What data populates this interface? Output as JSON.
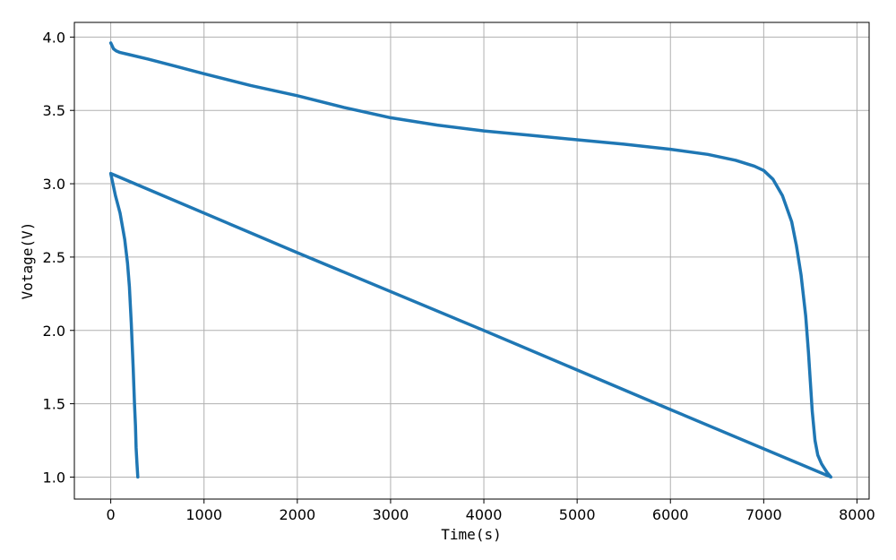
{
  "chart_data": {
    "type": "line",
    "title": "",
    "xlabel": "Time(s)",
    "ylabel": "Votage(V)",
    "xlim": [
      -390,
      8130
    ],
    "ylim": [
      0.85,
      4.1
    ],
    "grid": true,
    "legend": "none",
    "x_ticks": [
      0,
      1000,
      2000,
      3000,
      4000,
      5000,
      6000,
      7000,
      8000
    ],
    "y_ticks": [
      1.0,
      1.5,
      2.0,
      2.5,
      3.0,
      3.5,
      4.0
    ],
    "y_tick_labels": [
      "1.0",
      "1.5",
      "2.0",
      "2.5",
      "3.0",
      "3.5",
      "4.0"
    ],
    "series": [
      {
        "color": "#1f77b4",
        "x": [
          0,
          30,
          60,
          100,
          200,
          400,
          700,
          1000,
          1500,
          2000,
          2500,
          3000,
          3500,
          4000,
          4500,
          5000,
          5500,
          6000,
          6400,
          6700,
          6900,
          7000,
          7100,
          7200,
          7300,
          7350,
          7400,
          7450,
          7480,
          7500,
          7520,
          7550,
          7580,
          7600,
          7620,
          7650,
          7680,
          7720,
          6000,
          4000,
          2000,
          0,
          50,
          100,
          150,
          180,
          200,
          220,
          240,
          255,
          265,
          272,
          280,
          290
        ],
        "y": [
          3.96,
          3.92,
          3.905,
          3.895,
          3.88,
          3.85,
          3.8,
          3.75,
          3.67,
          3.6,
          3.52,
          3.45,
          3.4,
          3.36,
          3.33,
          3.3,
          3.27,
          3.235,
          3.2,
          3.16,
          3.12,
          3.09,
          3.03,
          2.92,
          2.74,
          2.58,
          2.38,
          2.1,
          1.85,
          1.65,
          1.45,
          1.25,
          1.15,
          1.12,
          1.09,
          1.06,
          1.03,
          1.0,
          1.46,
          2.0,
          2.53,
          3.07,
          2.92,
          2.8,
          2.62,
          2.46,
          2.3,
          2.05,
          1.75,
          1.5,
          1.35,
          1.2,
          1.1,
          1.0
        ]
      }
    ]
  }
}
